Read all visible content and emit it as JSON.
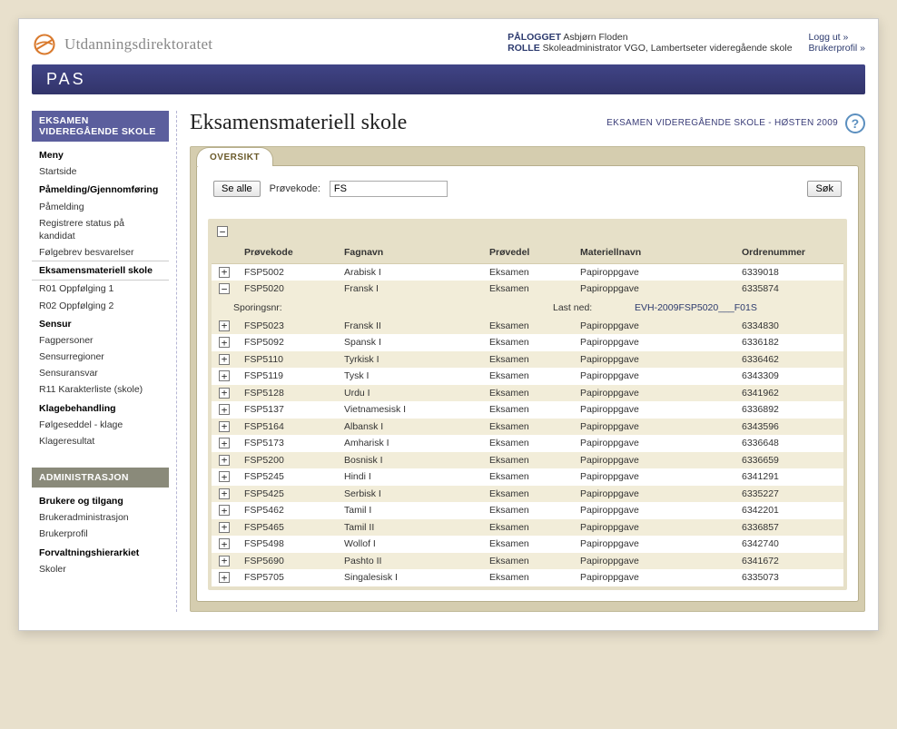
{
  "brand": {
    "name": "Utdanningsdirektoratet"
  },
  "nav": {
    "app": "PAS"
  },
  "user": {
    "logged_label": "PÅLOGGET",
    "logged_name": "Asbjørn Floden",
    "role_label": "ROLLE",
    "role_value": "Skoleadministrator VGO, Lambertseter videregående skole",
    "logout": "Logg ut »",
    "profile": "Brukerprofil »"
  },
  "sidebar": {
    "panel1": {
      "title_l1": "EKSAMEN",
      "title_l2": "VIDEREGÅENDE SKOLE",
      "groups": [
        {
          "type": "group",
          "label": "Meny"
        },
        {
          "type": "item",
          "label": "Startside"
        },
        {
          "type": "group",
          "label": "Påmelding/Gjennomføring"
        },
        {
          "type": "item",
          "label": "Påmelding"
        },
        {
          "type": "item",
          "label": "Registrere status på kandidat"
        },
        {
          "type": "item",
          "label": "Følgebrev besvarelser"
        },
        {
          "type": "active",
          "label": "Eksamensmateriell skole"
        },
        {
          "type": "item",
          "label": "R01 Oppfølging 1"
        },
        {
          "type": "item",
          "label": "R02 Oppfølging 2"
        },
        {
          "type": "group",
          "label": "Sensur"
        },
        {
          "type": "item",
          "label": "Fagpersoner"
        },
        {
          "type": "item",
          "label": "Sensurregioner"
        },
        {
          "type": "item",
          "label": "Sensuransvar"
        },
        {
          "type": "item",
          "label": "R11 Karakterliste (skole)"
        },
        {
          "type": "group",
          "label": "Klagebehandling"
        },
        {
          "type": "item",
          "label": "Følgeseddel - klage"
        },
        {
          "type": "item",
          "label": "Klageresultat"
        }
      ]
    },
    "panel2": {
      "title": "ADMINISTRASJON",
      "groups": [
        {
          "type": "group",
          "label": "Brukere og tilgang"
        },
        {
          "type": "item",
          "label": "Brukeradministrasjon"
        },
        {
          "type": "item",
          "label": "Brukerprofil"
        },
        {
          "type": "group",
          "label": "Forvaltningshierarkiet"
        },
        {
          "type": "item",
          "label": "Skoler"
        }
      ]
    }
  },
  "page": {
    "title": "Eksamensmateriell skole",
    "meta": "EKSAMEN VIDEREGÅENDE SKOLE - HØSTEN 2009"
  },
  "tab": {
    "label": "OVERSIKT"
  },
  "filter": {
    "see_all": "Se alle",
    "code_label": "Prøvekode:",
    "code_value": "FS",
    "search": "Søk"
  },
  "grid": {
    "headers": {
      "code": "Prøvekode",
      "subject": "Fagnavn",
      "part": "Prøvedel",
      "material": "Materiellnavn",
      "order": "Ordrenummer"
    },
    "rows": [
      {
        "code": "FSP5002",
        "subject": "Arabisk I",
        "part": "Eksamen",
        "material": "Papiroppgave",
        "order": "6339018",
        "open": false
      },
      {
        "code": "FSP5020",
        "subject": "Fransk I",
        "part": "Eksamen",
        "material": "Papiroppgave",
        "order": "6335874",
        "open": true,
        "detail": {
          "track_label": "Sporingsnr:",
          "dl_label": "Last ned:",
          "dl_value": "EVH-2009FSP5020___F01S"
        }
      },
      {
        "code": "FSP5023",
        "subject": "Fransk II",
        "part": "Eksamen",
        "material": "Papiroppgave",
        "order": "6334830",
        "open": false
      },
      {
        "code": "FSP5092",
        "subject": "Spansk I",
        "part": "Eksamen",
        "material": "Papiroppgave",
        "order": "6336182",
        "open": false
      },
      {
        "code": "FSP5110",
        "subject": "Tyrkisk I",
        "part": "Eksamen",
        "material": "Papiroppgave",
        "order": "6336462",
        "open": false
      },
      {
        "code": "FSP5119",
        "subject": "Tysk I",
        "part": "Eksamen",
        "material": "Papiroppgave",
        "order": "6343309",
        "open": false
      },
      {
        "code": "FSP5128",
        "subject": "Urdu I",
        "part": "Eksamen",
        "material": "Papiroppgave",
        "order": "6341962",
        "open": false
      },
      {
        "code": "FSP5137",
        "subject": "Vietnamesisk I",
        "part": "Eksamen",
        "material": "Papiroppgave",
        "order": "6336892",
        "open": false
      },
      {
        "code": "FSP5164",
        "subject": "Albansk I",
        "part": "Eksamen",
        "material": "Papiroppgave",
        "order": "6343596",
        "open": false
      },
      {
        "code": "FSP5173",
        "subject": "Amharisk I",
        "part": "Eksamen",
        "material": "Papiroppgave",
        "order": "6336648",
        "open": false
      },
      {
        "code": "FSP5200",
        "subject": "Bosnisk I",
        "part": "Eksamen",
        "material": "Papiroppgave",
        "order": "6336659",
        "open": false
      },
      {
        "code": "FSP5245",
        "subject": "Hindi I",
        "part": "Eksamen",
        "material": "Papiroppgave",
        "order": "6341291",
        "open": false
      },
      {
        "code": "FSP5425",
        "subject": "Serbisk I",
        "part": "Eksamen",
        "material": "Papiroppgave",
        "order": "6335227",
        "open": false
      },
      {
        "code": "FSP5462",
        "subject": "Tamil I",
        "part": "Eksamen",
        "material": "Papiroppgave",
        "order": "6342201",
        "open": false
      },
      {
        "code": "FSP5465",
        "subject": "Tamil II",
        "part": "Eksamen",
        "material": "Papiroppgave",
        "order": "6336857",
        "open": false
      },
      {
        "code": "FSP5498",
        "subject": "Wollof I",
        "part": "Eksamen",
        "material": "Papiroppgave",
        "order": "6342740",
        "open": false
      },
      {
        "code": "FSP5690",
        "subject": "Pashto II",
        "part": "Eksamen",
        "material": "Papiroppgave",
        "order": "6341672",
        "open": false
      },
      {
        "code": "FSP5705",
        "subject": "Singalesisk I",
        "part": "Eksamen",
        "material": "Papiroppgave",
        "order": "6335073",
        "open": false
      }
    ]
  }
}
